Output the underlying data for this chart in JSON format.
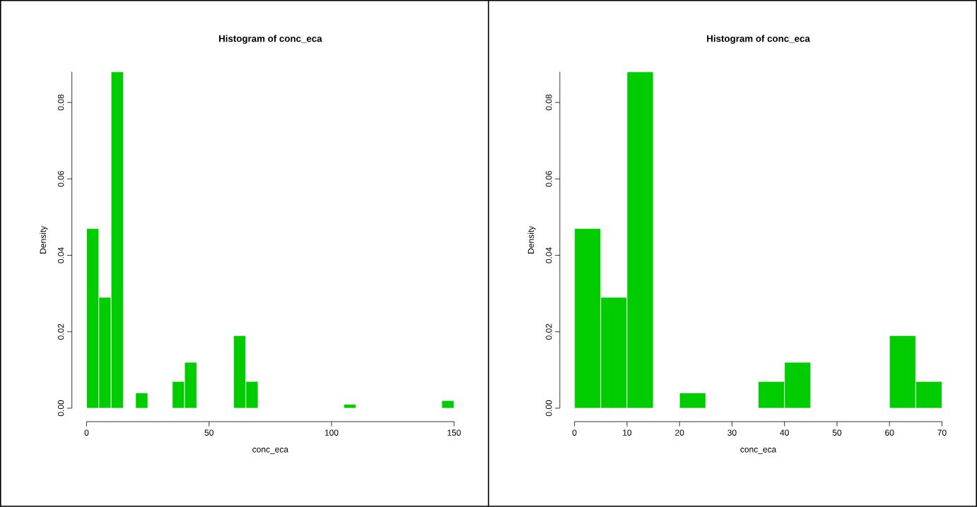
{
  "chart_data": [
    {
      "type": "histogram",
      "title": "Histogram of conc_eca",
      "xlabel": "conc_eca",
      "ylabel": "Density",
      "color": "#00cc00",
      "bins": [
        0,
        5,
        10,
        15,
        20,
        25,
        30,
        35,
        40,
        45,
        50,
        55,
        60,
        65,
        70,
        75,
        80,
        85,
        90,
        95,
        100,
        105,
        110,
        115,
        120,
        125,
        130,
        135,
        140,
        145,
        150
      ],
      "values": [
        0.047,
        0.029,
        0.088,
        0,
        0.004,
        0,
        0,
        0.007,
        0.012,
        0,
        0,
        0,
        0.019,
        0.007,
        0,
        0,
        0,
        0,
        0,
        0,
        0,
        0.001,
        0,
        0,
        0,
        0,
        0,
        0,
        0,
        0.002
      ],
      "xlim": [
        0,
        150
      ],
      "xticks": [
        0,
        50,
        100,
        150
      ],
      "ylim": [
        0,
        0.088
      ],
      "yticks": [
        {
          "value": 0,
          "label": "0.00"
        },
        {
          "value": 0.02,
          "label": "0.02"
        },
        {
          "value": 0.04,
          "label": "0.04"
        },
        {
          "value": 0.06,
          "label": "0.06"
        },
        {
          "value": 0.08,
          "label": "0.08"
        }
      ]
    },
    {
      "type": "histogram",
      "title": "Histogram of conc_eca",
      "xlabel": "conc_eca",
      "ylabel": "Density",
      "color": "#00cc00",
      "bins": [
        0,
        5,
        10,
        15,
        20,
        25,
        30,
        35,
        40,
        45,
        50,
        55,
        60,
        65,
        70
      ],
      "values": [
        0.047,
        0.029,
        0.088,
        0,
        0.004,
        0,
        0,
        0.007,
        0.012,
        0,
        0,
        0,
        0.019,
        0.007
      ],
      "xlim": [
        0,
        70
      ],
      "xticks": [
        0,
        10,
        20,
        30,
        40,
        50,
        60,
        70
      ],
      "ylim": [
        0,
        0.088
      ],
      "yticks": [
        {
          "value": 0,
          "label": "0.00"
        },
        {
          "value": 0.02,
          "label": "0.02"
        },
        {
          "value": 0.04,
          "label": "0.04"
        },
        {
          "value": 0.06,
          "label": "0.06"
        },
        {
          "value": 0.08,
          "label": "0.08"
        }
      ]
    }
  ]
}
